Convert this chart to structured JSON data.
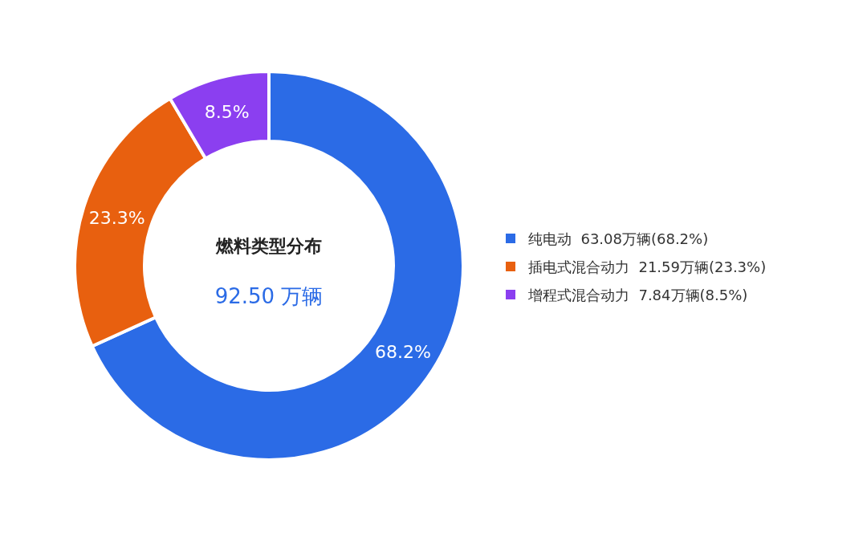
{
  "chart_data": {
    "type": "donut",
    "title": "燃料类型分布",
    "subtitle": "92.50 万辆",
    "categories": [
      "纯电动  63.08万辆(68.2%)",
      "插电式混合动力  21.59万辆(23.3%)",
      "增程式混合动力  7.84万辆(8.5%)"
    ],
    "values": [
      68.2,
      23.3,
      8.5
    ],
    "colors": [
      "#2b6be6",
      "#e8600f",
      "#8b3ff0"
    ],
    "value_labels": [
      "68.2%",
      "23.3%",
      "8.5%"
    ],
    "legend": "right"
  }
}
